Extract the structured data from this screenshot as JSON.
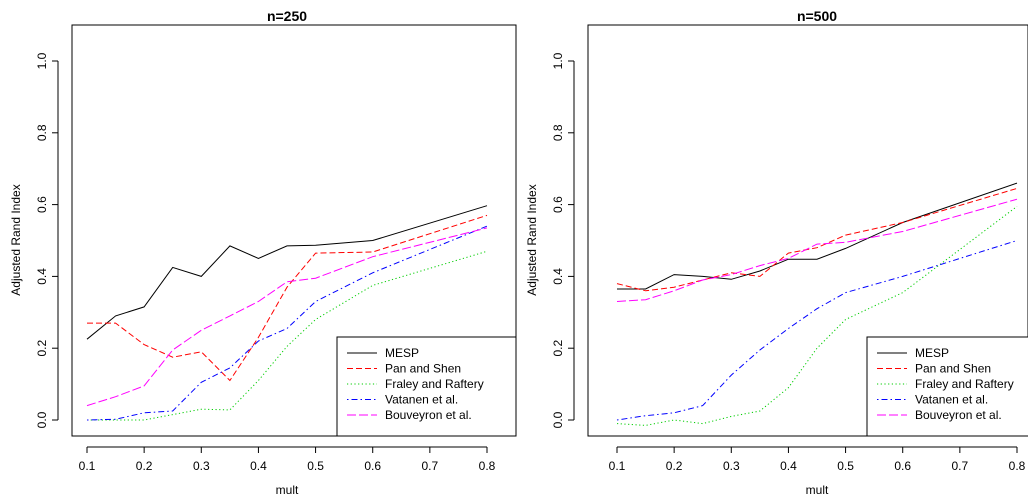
{
  "chart_data": [
    {
      "type": "line",
      "title": "n=250",
      "xlabel": "mult",
      "ylabel": "Adjusted Rand Index",
      "x": [
        0.1,
        0.15,
        0.2,
        0.25,
        0.3,
        0.35,
        0.4,
        0.45,
        0.5,
        0.6,
        0.8
      ],
      "xticks": [
        0.1,
        0.2,
        0.3,
        0.4,
        0.5,
        0.6,
        0.7,
        0.8
      ],
      "xtick_labels": [
        "0.1",
        "0.2",
        "0.3",
        "0.4",
        "0.5",
        "0.6",
        "0.7",
        "0.8"
      ],
      "yticks": [
        0.0,
        0.2,
        0.4,
        0.6,
        0.8,
        1.0
      ],
      "ytick_labels": [
        "0.0",
        "0.2",
        "0.4",
        "0.6",
        "0.8",
        "1.0"
      ],
      "xlim": [
        0.1,
        0.8
      ],
      "ylim": [
        0.0,
        1.0
      ],
      "legend_position": "bottom-right",
      "series": [
        {
          "name": "MESP",
          "color": "#000000",
          "dash": "solid",
          "values": [
            0.225,
            0.29,
            0.315,
            0.425,
            0.4,
            0.485,
            0.45,
            0.485,
            0.487,
            0.5,
            0.597
          ]
        },
        {
          "name": "Pan and Shen",
          "color": "#FF0000",
          "dash": "dashed",
          "values": [
            0.27,
            0.27,
            0.21,
            0.175,
            0.19,
            0.11,
            0.23,
            0.37,
            0.465,
            0.468,
            0.57
          ]
        },
        {
          "name": "Fraley and Raftery",
          "color": "#00CD00",
          "dash": "dotted",
          "values": [
            0.0,
            0.0,
            0.0,
            0.015,
            0.03,
            0.028,
            0.11,
            0.205,
            0.28,
            0.375,
            0.47
          ]
        },
        {
          "name": "Vatanen et al.",
          "color": "#0000FF",
          "dash": "dotdash",
          "values": [
            0.0,
            0.002,
            0.02,
            0.025,
            0.105,
            0.145,
            0.22,
            0.255,
            0.33,
            0.41,
            0.54
          ]
        },
        {
          "name": "Bouveyron et al.",
          "color": "#FF00FF",
          "dash": "longdash",
          "values": [
            0.04,
            0.065,
            0.095,
            0.195,
            0.25,
            0.29,
            0.33,
            0.385,
            0.395,
            0.455,
            0.535
          ]
        }
      ]
    },
    {
      "type": "line",
      "title": "n=500",
      "xlabel": "mult",
      "ylabel": "Adjusted Rand Index",
      "x": [
        0.1,
        0.15,
        0.2,
        0.25,
        0.3,
        0.35,
        0.4,
        0.45,
        0.5,
        0.6,
        0.8
      ],
      "xticks": [
        0.1,
        0.2,
        0.3,
        0.4,
        0.5,
        0.6,
        0.7,
        0.8
      ],
      "xtick_labels": [
        "0.1",
        "0.2",
        "0.3",
        "0.4",
        "0.5",
        "0.6",
        "0.7",
        "0.8"
      ],
      "yticks": [
        0.0,
        0.2,
        0.4,
        0.6,
        0.8,
        1.0
      ],
      "ytick_labels": [
        "0.0",
        "0.2",
        "0.4",
        "0.6",
        "0.8",
        "1.0"
      ],
      "xlim": [
        0.1,
        0.8
      ],
      "ylim": [
        0.0,
        1.0
      ],
      "legend_position": "bottom-right",
      "series": [
        {
          "name": "MESP",
          "color": "#000000",
          "dash": "solid",
          "values": [
            0.365,
            0.365,
            0.405,
            0.4,
            0.392,
            0.415,
            0.448,
            0.448,
            0.478,
            0.55,
            0.66
          ]
        },
        {
          "name": "Pan and Shen",
          "color": "#FF0000",
          "dash": "dashed",
          "values": [
            0.38,
            0.36,
            0.37,
            0.39,
            0.41,
            0.4,
            0.465,
            0.48,
            0.515,
            0.55,
            0.645
          ]
        },
        {
          "name": "Fraley and Raftery",
          "color": "#00CD00",
          "dash": "dotted",
          "values": [
            -0.01,
            -0.015,
            0.0,
            -0.01,
            0.01,
            0.025,
            0.09,
            0.2,
            0.28,
            0.355,
            0.595
          ]
        },
        {
          "name": "Vatanen et al.",
          "color": "#0000FF",
          "dash": "dotdash",
          "values": [
            0.0,
            0.012,
            0.02,
            0.04,
            0.125,
            0.195,
            0.255,
            0.31,
            0.355,
            0.4,
            0.5
          ]
        },
        {
          "name": "Bouveyron et al.",
          "color": "#FF00FF",
          "dash": "longdash",
          "values": [
            0.33,
            0.335,
            0.36,
            0.39,
            0.405,
            0.43,
            0.45,
            0.49,
            0.495,
            0.525,
            0.615
          ]
        }
      ]
    }
  ]
}
